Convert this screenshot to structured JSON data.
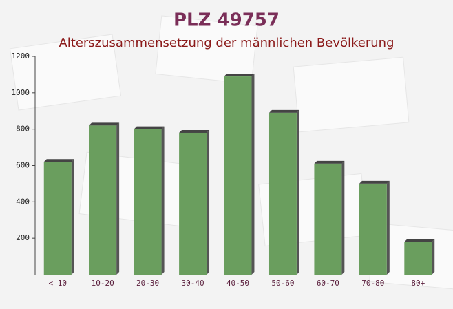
{
  "chart_data": {
    "type": "bar",
    "title": "PLZ 49757",
    "subtitle": "Alterszusammensetzung der männlichen Bevölkerung",
    "categories": [
      "< 10",
      "10-20",
      "20-30",
      "30-40",
      "40-50",
      "50-60",
      "60-70",
      "70-80",
      "80+"
    ],
    "values": [
      620,
      820,
      800,
      780,
      1090,
      890,
      610,
      500,
      180
    ],
    "color": "#6a9e5e",
    "ylim": [
      0,
      1200
    ],
    "yticks": [
      200,
      400,
      600,
      800,
      1000,
      1200
    ],
    "grid": false
  }
}
